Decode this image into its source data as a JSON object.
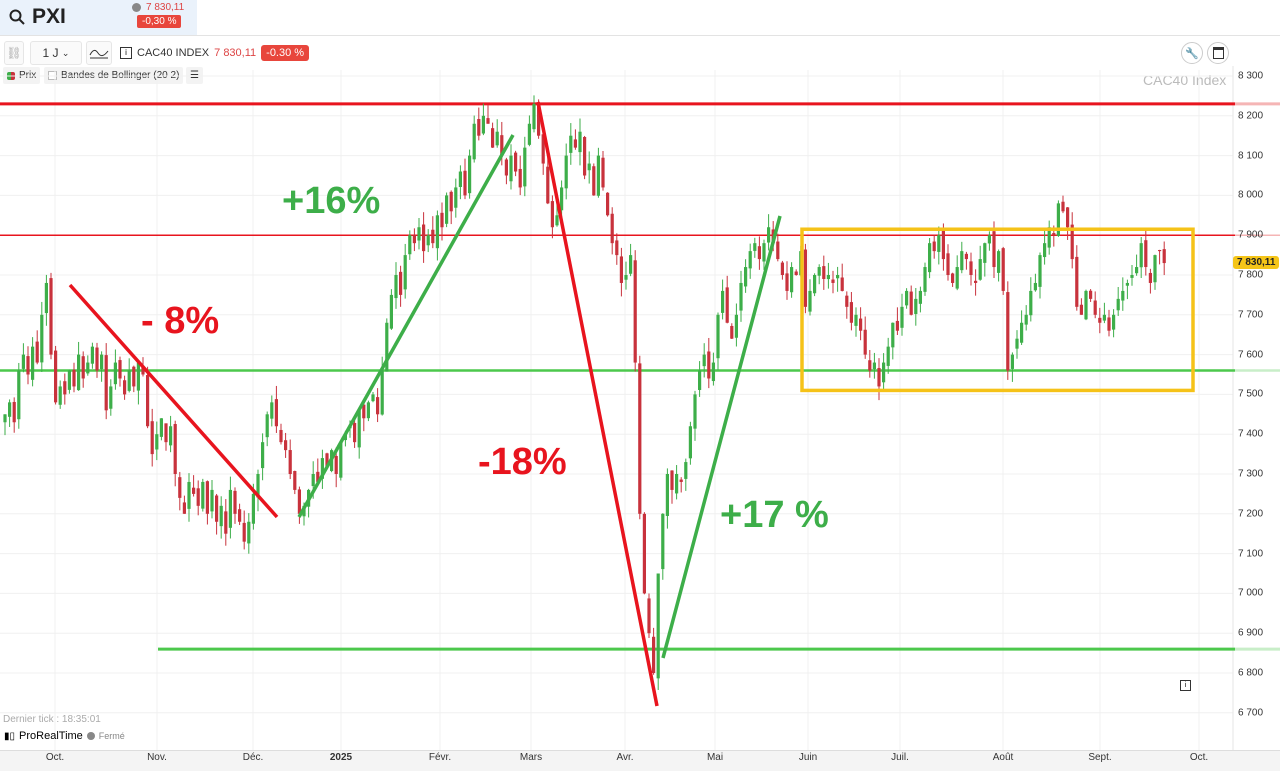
{
  "header": {
    "symbol": "PXI",
    "price": "7 830,11",
    "change": "-0,30 %",
    "search_icon": "search-icon"
  },
  "toolbar": {
    "timeframe": "1 J",
    "instrument": "CAC40 INDEX",
    "price": "7 830,11",
    "change": "-0.30 %"
  },
  "legend": {
    "price_label": "Prix",
    "indicator": "Bandes de Bollinger (20 2)"
  },
  "watermark": "CAC40 Index",
  "footer": {
    "last_tick": "Dernier tick : 18:35:01",
    "brand": "ProRealTime",
    "status": "Fermé"
  },
  "colors": {
    "up": "#3dae49",
    "down": "#c8323c",
    "support": "#4cc84c",
    "resistance": "#e8141e",
    "box": "#f5c218",
    "badge": "#f5c518"
  },
  "annotations": {
    "drop1": "- 8%",
    "rise1": "+16%",
    "drop2": "-18%",
    "rise2": "+17 %"
  },
  "chart_data": {
    "type": "candlestick",
    "title": "CAC40 Index",
    "ylim": [
      6650,
      8330
    ],
    "y_ticks": [
      "8 300",
      "8 200",
      "8 100",
      "8 000",
      "7 900",
      "7 800",
      "7 700",
      "7 600",
      "7 500",
      "7 400",
      "7 300",
      "7 200",
      "7 100",
      "7 000",
      "6 900",
      "6 800",
      "6 700"
    ],
    "x_ticks": [
      "Oct.",
      "Nov.",
      "Déc.",
      "2025",
      "Févr.",
      "Mars",
      "Avr.",
      "Mai",
      "Juin",
      "Juil.",
      "Août",
      "Sept.",
      "Oct."
    ],
    "last_price": "7 830,11",
    "horizontal_levels": [
      8230,
      7900,
      7560,
      6860
    ],
    "range_box": [
      7510,
      7915
    ],
    "closes": [
      7450,
      7480,
      7430,
      7560,
      7600,
      7550,
      7620,
      7580,
      7700,
      7780,
      7600,
      7480,
      7520,
      7500,
      7560,
      7520,
      7600,
      7540,
      7580,
      7620,
      7560,
      7600,
      7460,
      7520,
      7580,
      7540,
      7500,
      7560,
      7520,
      7580,
      7550,
      7420,
      7350,
      7400,
      7440,
      7380,
      7420,
      7300,
      7240,
      7200,
      7280,
      7250,
      7220,
      7280,
      7200,
      7260,
      7180,
      7220,
      7150,
      7260,
      7200,
      7180,
      7130,
      7180,
      7250,
      7300,
      7380,
      7450,
      7480,
      7420,
      7380,
      7360,
      7300,
      7260,
      7200,
      7220,
      7260,
      7300,
      7280,
      7340,
      7320,
      7360,
      7300,
      7380,
      7400,
      7420,
      7380,
      7460,
      7440,
      7480,
      7500,
      7450,
      7560,
      7680,
      7750,
      7800,
      7750,
      7850,
      7900,
      7880,
      7920,
      7860,
      7900,
      7880,
      7950,
      7920,
      8000,
      7960,
      8020,
      8060,
      8000,
      8100,
      8180,
      8150,
      8200,
      8180,
      8120,
      8160,
      8100,
      8050,
      8100,
      8060,
      8020,
      8120,
      8180,
      8230,
      8150,
      8080,
      7980,
      7920,
      7950,
      8020,
      8100,
      8150,
      8120,
      8160,
      8050,
      8080,
      8000,
      8100,
      8020,
      7950,
      7880,
      7850,
      7780,
      7800,
      7850,
      7580,
      7200,
      7000,
      6900,
      6800,
      7050,
      7200,
      7300,
      7260,
      7300,
      7280,
      7330,
      7420,
      7500,
      7560,
      7600,
      7540,
      7580,
      7700,
      7760,
      7680,
      7640,
      7700,
      7780,
      7820,
      7860,
      7880,
      7840,
      7880,
      7920,
      7880,
      7840,
      7800,
      7760,
      7820,
      7800,
      7860,
      7720,
      7760,
      7800,
      7820,
      7790,
      7800,
      7780,
      7800,
      7760,
      7720,
      7680,
      7700,
      7660,
      7600,
      7560,
      7580,
      7520,
      7580,
      7620,
      7680,
      7660,
      7720,
      7760,
      7700,
      7740,
      7760,
      7820,
      7880,
      7860,
      7900,
      7840,
      7800,
      7780,
      7820,
      7860,
      7840,
      7800,
      7780,
      7840,
      7880,
      7900,
      7820,
      7860,
      7760,
      7560,
      7600,
      7640,
      7680,
      7700,
      7760,
      7780,
      7850,
      7880,
      7920,
      7900,
      7980,
      7960,
      7920,
      7840,
      7720,
      7700,
      7760,
      7740,
      7700,
      7680,
      7700,
      7660,
      7700,
      7740,
      7760,
      7780,
      7800,
      7820,
      7880,
      7820,
      7780,
      7850,
      7860,
      7830
    ]
  }
}
